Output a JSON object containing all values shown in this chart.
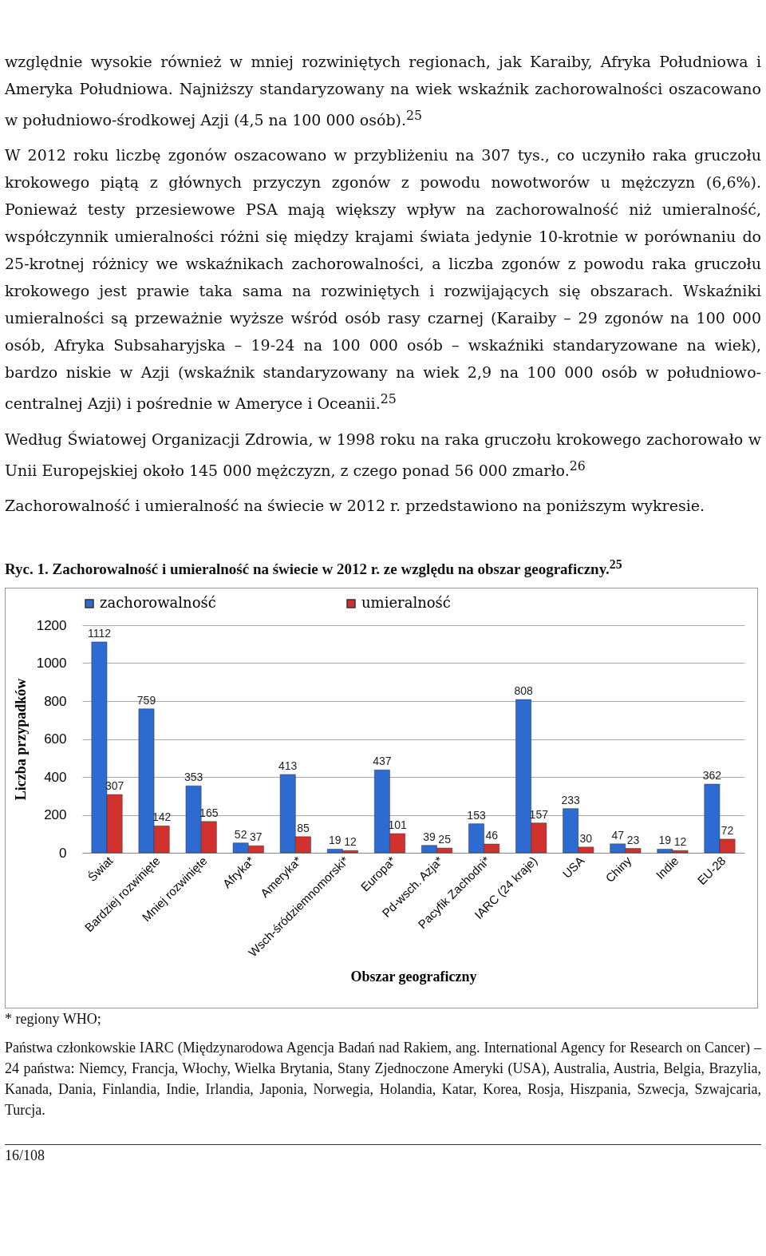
{
  "chart_data": {
    "type": "bar",
    "title": "Ryc. 1. Zachorowalność i umieralność na świecie w 2012 r. ze względu na obszar geograficzny.$^{25}$",
    "xlabel": "Obszar geograficzny",
    "ylabel": "Liczba przypadków",
    "categories": [
      "Świat",
      "Bardziej rozwinięte",
      "Mniej rozwinięte",
      "Afryka*",
      "Ameryka*",
      "Wsch-śródziemnomorski*",
      "Europa*",
      "Pd-wsch. Azja*",
      "Pacyfik Zachodni*",
      "IARC (24 kraje)",
      "USA",
      "Chiny",
      "Indie",
      "EU-28"
    ],
    "series": [
      {
        "name": "zachorowalność",
        "color": "#2e6bd0",
        "values": [
          1112,
          759,
          353,
          52,
          413,
          19,
          437,
          39,
          153,
          808,
          233,
          47,
          19,
          362
        ]
      },
      {
        "name": "umieralność",
        "color": "#d2322d",
        "values": [
          307,
          142,
          165,
          37,
          85,
          12,
          101,
          25,
          46,
          157,
          30,
          23,
          12,
          72
        ]
      }
    ],
    "ylim": [
      0,
      1200
    ],
    "yticks": [
      0,
      200,
      400,
      600,
      800,
      1000,
      1200
    ],
    "grid": "y",
    "legend": "top",
    "data_labels": true,
    "annotations": [
      "względnie wysokie również w mniej rozwiniętych regionach, jak Karaiby, Afryka Południowa i Ameryka Południowa. Najniższy standaryzowany na wiek wskaźnik zachorowalności oszacowano w południowo-środkowej Azji (4,5 na 100 000 osób).$^{25}$",
      "W 2012 roku liczbę zgonów oszacowano w przybliżeniu na 307 tys., co uczyniło raka gruczołu krokowego piątą z głównych przyczyn zgonów z powodu nowotworów u mężczyzn (6,6%). Ponieważ testy przesiewowe PSA mają większy wpływ na zachorowalność niż umieralność, współczynnik umieralności różni się między krajami świata jedynie 10-krotnie w porównaniu do 25-krotnej różnicy we wskaźnikach zachorowalności, a liczba zgonów z powodu raka gruczołu krokowego jest prawie taka sama na rozwiniętych i rozwijających się obszarach. Wskaźniki umieralności są przeważnie wyższe wśród osób rasy czarnej (Karaiby – 29 zgonów na 100 000 osób, Afryka Subsaharyjska – 19-24 na 100 000 osób – wskaźniki standaryzowane na wiek), bardzo niskie w Azji (wskaźnik standaryzowany na wiek 2,9 na 100 000 osób w południowo-centralnej Azji) i pośrednie w Ameryce i Oceanii.$^{25}$",
      "Według Światowej Organizacji Zdrowia, w 1998 roku na raka gruczołu krokowego zachorowało w Unii Europejskiej około 145 000 mężczyzn, z czego ponad 56 000 zmarło.$^{26}$",
      "Zachorowalność i umieralność na świecie w 2012 r. przedstawiono na poniższym wykresie.",
      "* regiony WHO;",
      "Państwa członkowskie IARC (Międzynarodowa Agencja Badań nad Rakiem, ang. International Agency for Research on Cancer) – 24 państwa: Niemcy, Francja, Włochy, Wielka Brytania, Stany Zjednoczone Ameryki (USA), Australia, Austria, Belgia, Brazylia, Kanada, Dania, Finlandia, Indie, Irlandia, Japonia, Norwegia, Holandia, Katar, Korea, Rosja, Hiszpania, Szwecja, Szwajcaria, Turcja.",
      "16/108"
    ]
  }
}
